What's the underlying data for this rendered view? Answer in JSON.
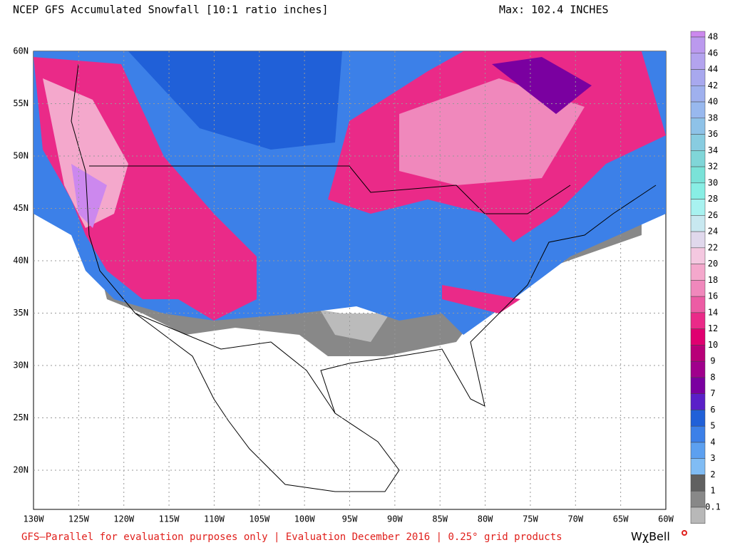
{
  "header": {
    "title": "NCEP GFS Accumulated Snowfall [10:1 ratio inches]",
    "max": "Max: 102.4 INCHES"
  },
  "map": {
    "lat_labels": [
      "60N",
      "55N",
      "50N",
      "45N",
      "40N",
      "35N",
      "30N",
      "25N",
      "20N"
    ],
    "lon_labels": [
      "130W",
      "125W",
      "120W",
      "115W",
      "110W",
      "105W",
      "100W",
      "95W",
      "90W",
      "85W",
      "80W",
      "75W",
      "70W",
      "65W",
      "60W"
    ]
  },
  "legend": {
    "labels": [
      "48",
      "46",
      "44",
      "42",
      "40",
      "38",
      "36",
      "34",
      "32",
      "30",
      "28",
      "26",
      "24",
      "22",
      "20",
      "18",
      "16",
      "14",
      "12",
      "10",
      "9",
      "8",
      "7",
      "6",
      "5",
      "4",
      "3",
      "2",
      "1",
      "0.1"
    ],
    "colors": [
      "#cc88ee",
      "#bb99ee",
      "#b3a3ee",
      "#a8a8ee",
      "#9fb0ee",
      "#98b8ee",
      "#8ec2e8",
      "#88cce0",
      "#80d6d8",
      "#7ae2d8",
      "#88eee4",
      "#a8f2f0",
      "#c8e8f0",
      "#e0d8ec",
      "#f4c8e0",
      "#f4a8cc",
      "#f088bc",
      "#ec5ca4",
      "#ea2a88",
      "#e00070",
      "#b80078",
      "#a0008c",
      "#7a00a0",
      "#5a20c8",
      "#2060d8",
      "#3c80e8",
      "#5ca0f0",
      "#80bcf4",
      "#606060",
      "#888888",
      "#b8b8b8",
      "#ffffff"
    ]
  },
  "footer": {
    "note": "GFS–Parallel for evaluation purposes only | Evaluation December 2016 | 0.25° grid products",
    "brand": "WχBell"
  }
}
